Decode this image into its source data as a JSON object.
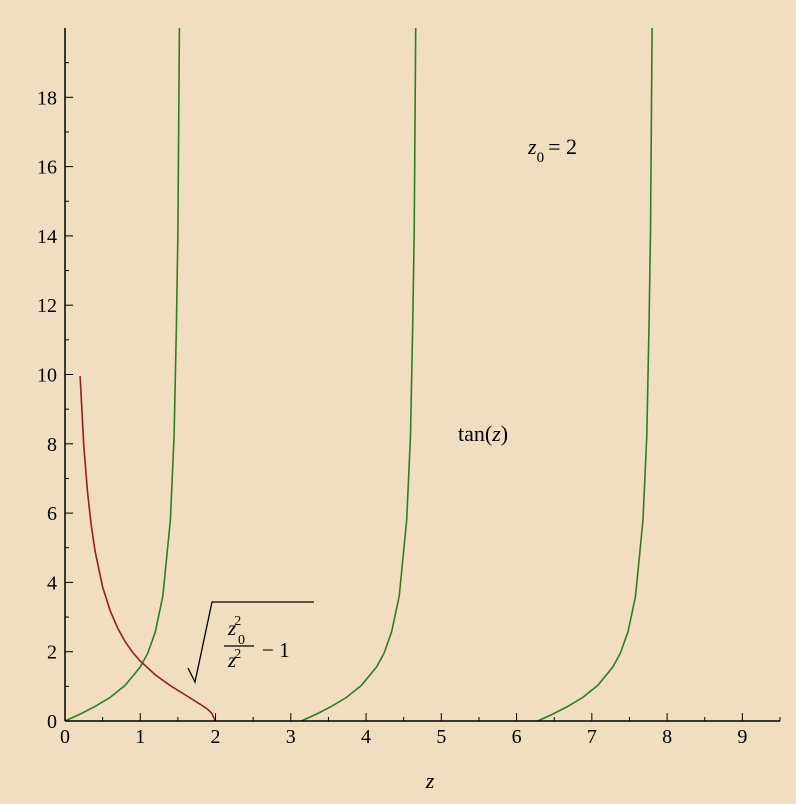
{
  "colors": {
    "background": "#F1DEC1",
    "axis": "#000000",
    "tan_series": "#2E7D23",
    "sqrt_series": "#9B1C1C"
  },
  "chart_data": {
    "type": "line",
    "title": "",
    "xlabel": "z",
    "ylabel": "",
    "xlim": [
      0,
      9.5
    ],
    "ylim": [
      0,
      20
    ],
    "grid": false,
    "legend": "none",
    "x_ticks": [
      0,
      1,
      2,
      3,
      4,
      5,
      6,
      7,
      8,
      9
    ],
    "y_ticks": [
      0,
      2,
      4,
      6,
      8,
      10,
      12,
      14,
      16,
      18
    ],
    "annotations": {
      "parameter": {
        "symbol": "z",
        "subscript": "0",
        "equals": "= 2"
      },
      "tan_label": {
        "fn": "tan",
        "arg": "z"
      },
      "sqrt_label": {
        "num_base": "z",
        "num_sub": "0",
        "num_sup": "2",
        "den_base": "z",
        "den_sup": "2",
        "minus_one": "− 1"
      }
    },
    "series": [
      {
        "name": "tan(z)",
        "branches": [
          [
            [
              0,
              0
            ],
            [
              0.2,
              0.2
            ],
            [
              0.4,
              0.42
            ],
            [
              0.6,
              0.68
            ],
            [
              0.8,
              1.03
            ],
            [
              1.0,
              1.56
            ],
            [
              1.1,
              1.96
            ],
            [
              1.2,
              2.57
            ],
            [
              1.3,
              3.6
            ],
            [
              1.4,
              5.8
            ],
            [
              1.45,
              8.24
            ],
            [
              1.48,
              11.4
            ],
            [
              1.5,
              14.1
            ],
            [
              1.52,
              20
            ]
          ],
          [
            [
              3.14,
              0
            ],
            [
              3.34,
              0.2
            ],
            [
              3.54,
              0.42
            ],
            [
              3.74,
              0.68
            ],
            [
              3.94,
              1.03
            ],
            [
              4.14,
              1.56
            ],
            [
              4.24,
              1.96
            ],
            [
              4.34,
              2.57
            ],
            [
              4.44,
              3.6
            ],
            [
              4.54,
              5.8
            ],
            [
              4.59,
              8.24
            ],
            [
              4.62,
              11.4
            ],
            [
              4.64,
              14.1
            ],
            [
              4.66,
              20
            ]
          ],
          [
            [
              6.28,
              0
            ],
            [
              6.48,
              0.2
            ],
            [
              6.68,
              0.42
            ],
            [
              6.88,
              0.68
            ],
            [
              7.08,
              1.03
            ],
            [
              7.28,
              1.56
            ],
            [
              7.38,
              1.96
            ],
            [
              7.48,
              2.57
            ],
            [
              7.58,
              3.6
            ],
            [
              7.68,
              5.8
            ],
            [
              7.73,
              8.24
            ],
            [
              7.76,
              11.4
            ],
            [
              7.78,
              14.1
            ],
            [
              7.8,
              20
            ]
          ]
        ]
      },
      {
        "name": "sqrt(z0^2/z^2 - 1)",
        "branches": [
          [
            [
              0.2,
              9.95
            ],
            [
              0.25,
              7.94
            ],
            [
              0.3,
              6.59
            ],
            [
              0.35,
              5.63
            ],
            [
              0.4,
              4.9
            ],
            [
              0.5,
              3.87
            ],
            [
              0.6,
              3.18
            ],
            [
              0.7,
              2.68
            ],
            [
              0.8,
              2.29
            ],
            [
              0.9,
              1.98
            ],
            [
              1.0,
              1.73
            ],
            [
              1.2,
              1.33
            ],
            [
              1.4,
              1.02
            ],
            [
              1.6,
              0.75
            ],
            [
              1.8,
              0.48
            ],
            [
              1.9,
              0.33
            ],
            [
              1.95,
              0.22
            ],
            [
              2.0,
              0
            ]
          ]
        ]
      }
    ]
  }
}
